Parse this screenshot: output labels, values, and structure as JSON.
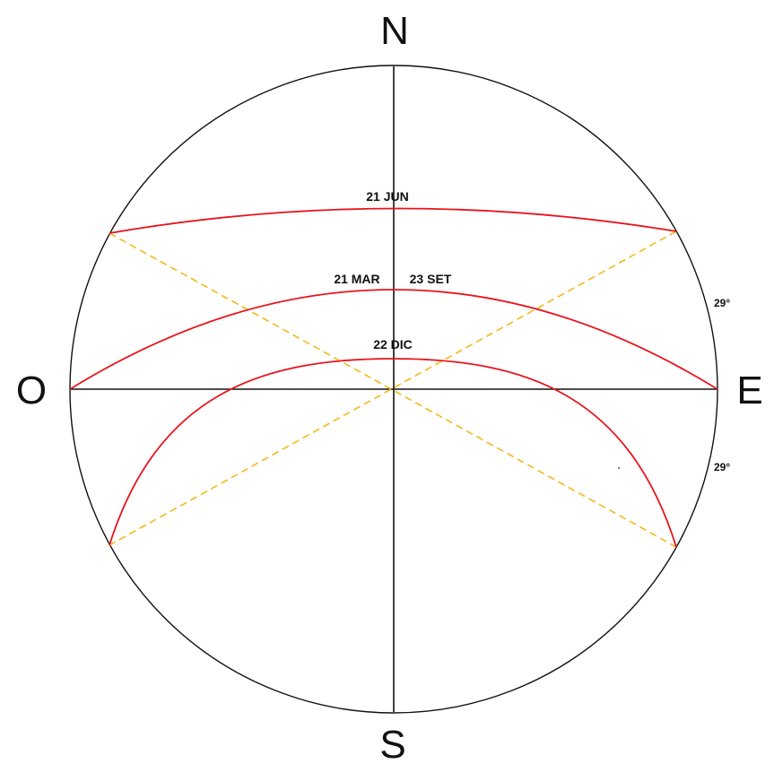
{
  "colors": {
    "background": "#ffffff",
    "outline": "#111111",
    "sun_path": "#e8141c",
    "guide_dash": "#f5b81b"
  },
  "cardinals": {
    "north": "N",
    "south": "S",
    "east": "E",
    "west": "O"
  },
  "paths": [
    {
      "id": "jun",
      "label": "21 JUN"
    },
    {
      "id": "equinox",
      "label_left": "21 MAR",
      "label_right": "23 SET"
    },
    {
      "id": "dic",
      "label": "22 DIC"
    }
  ],
  "angles": {
    "upper": "29°",
    "lower": "29°"
  }
}
